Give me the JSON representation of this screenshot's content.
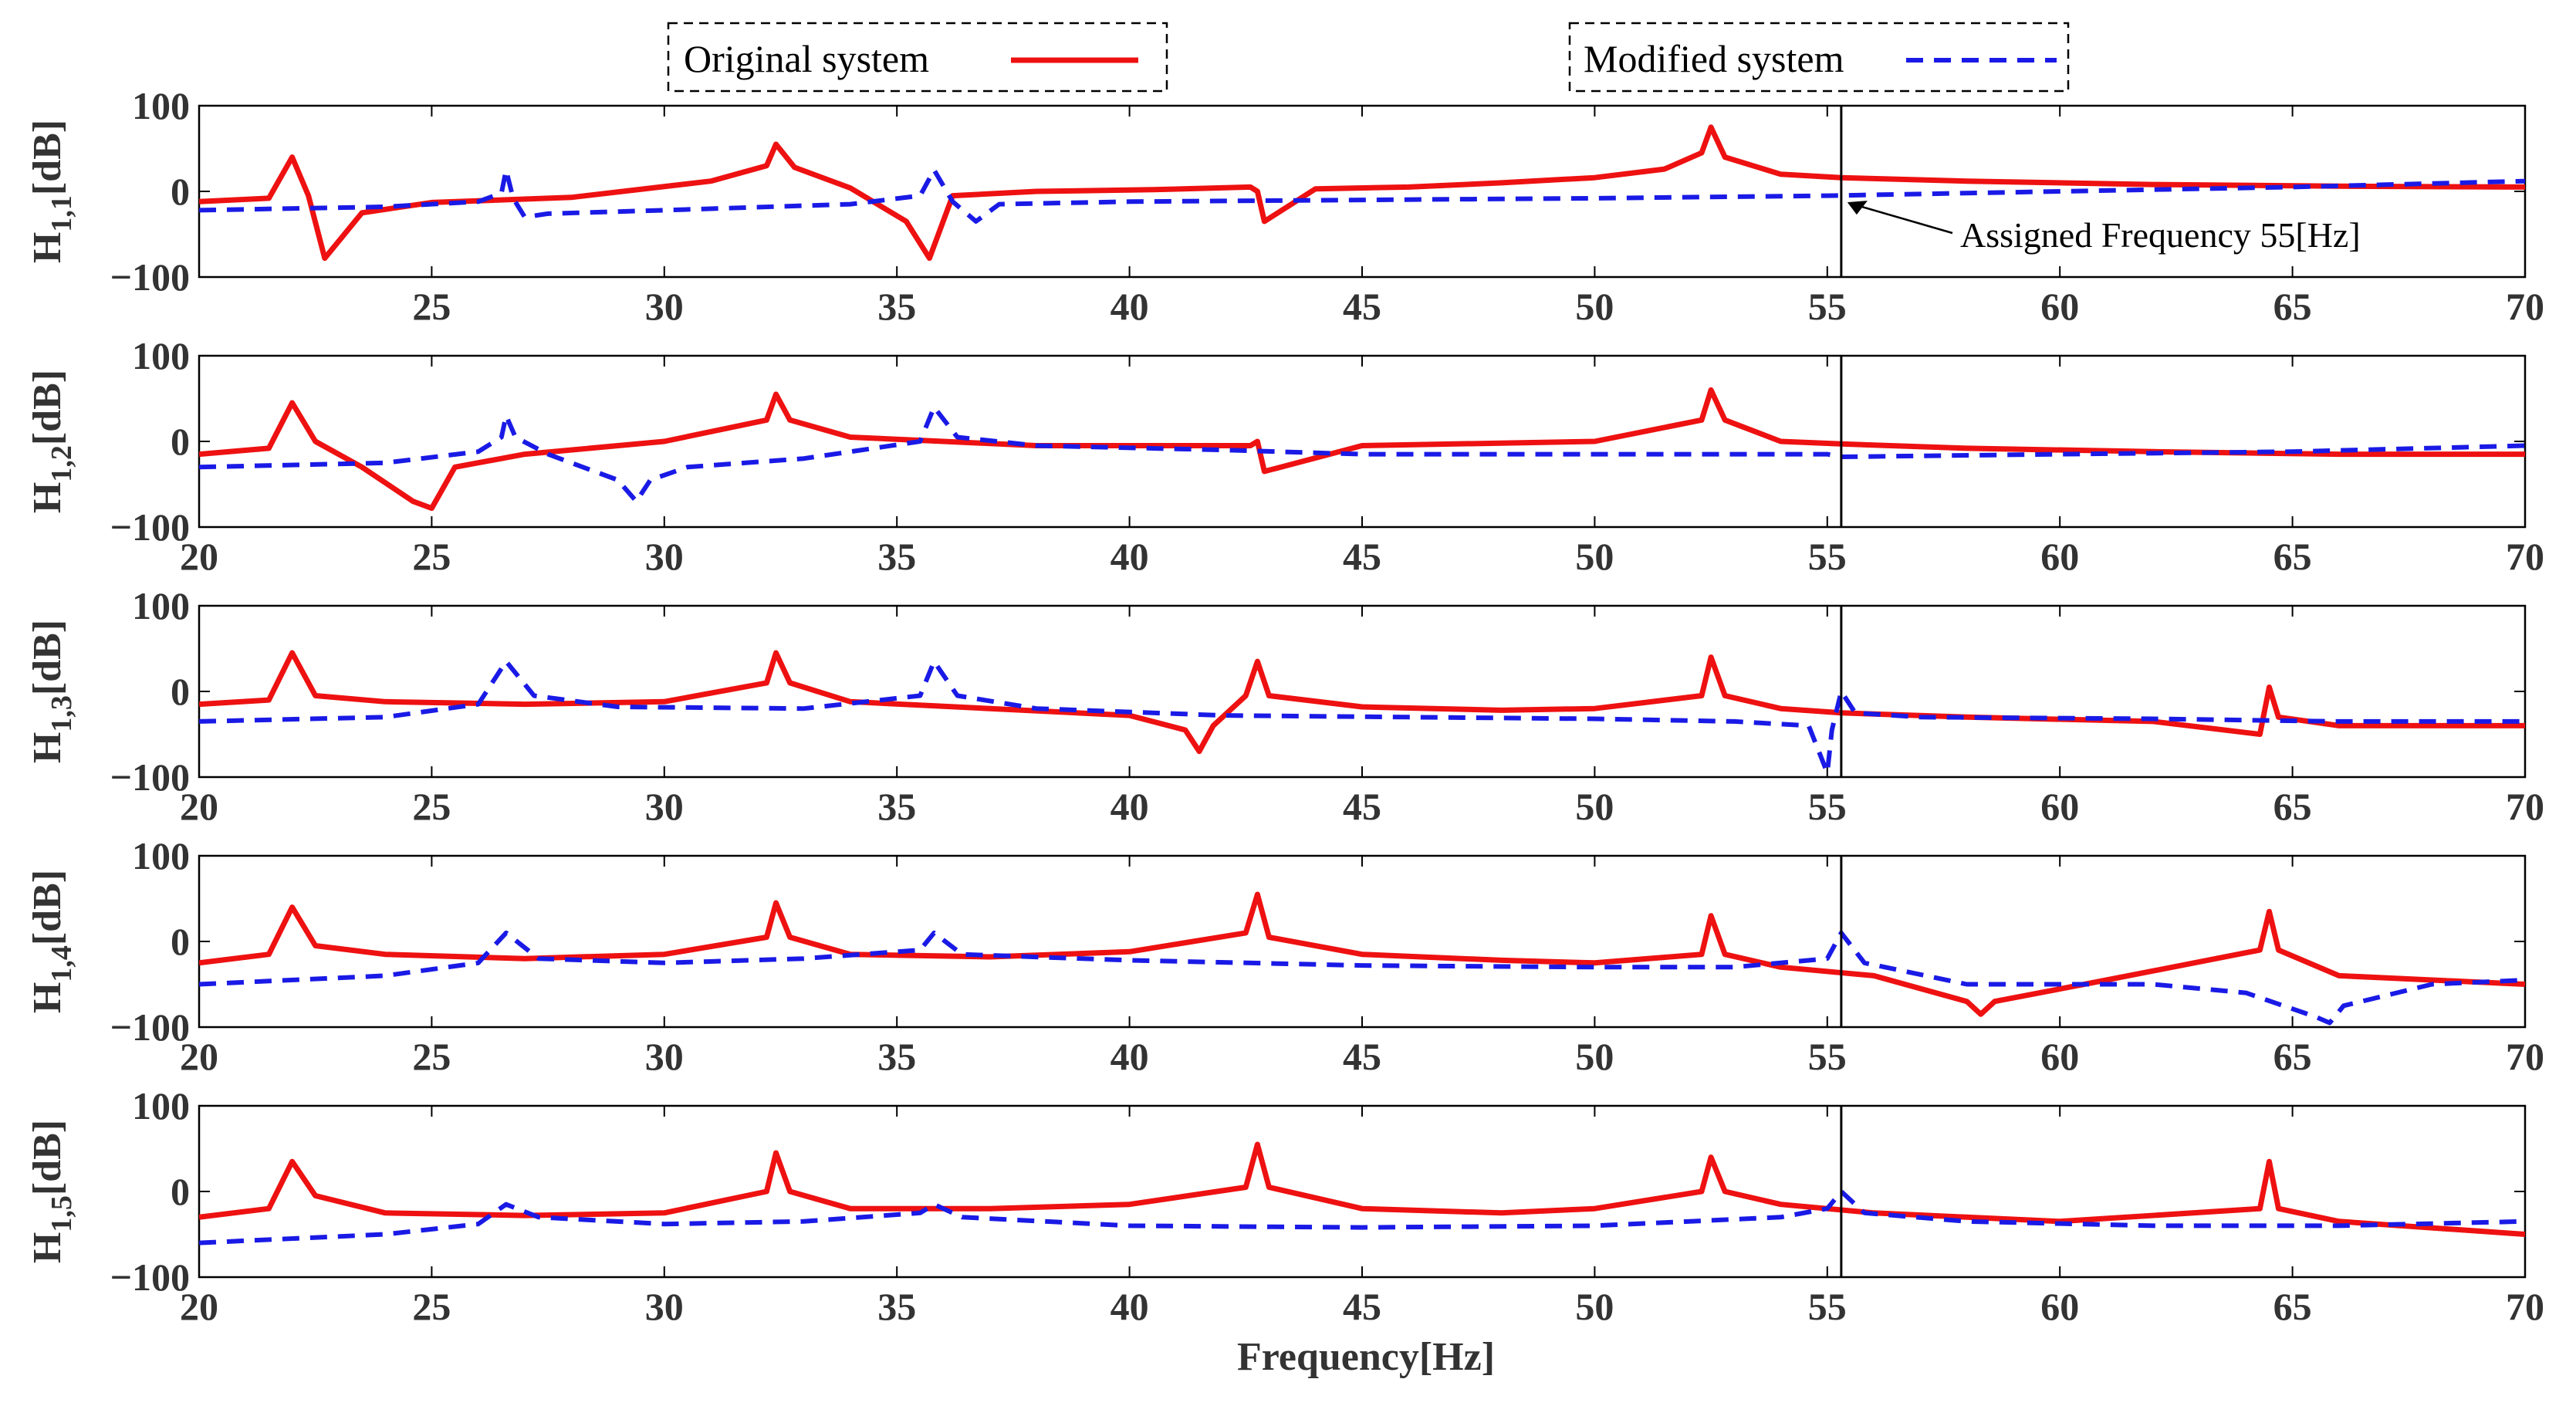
{
  "chart_data": {
    "type": "line",
    "xlabel": "Frequency[Hz]",
    "xlim": [
      20,
      70
    ],
    "ylim": [
      -100,
      100
    ],
    "xticks": [
      "20",
      "25",
      "30",
      "35",
      "40",
      "45",
      "50",
      "55",
      "60",
      "65",
      "70"
    ],
    "yticks": [
      "100",
      "0",
      "−100"
    ],
    "first_panel_xticks": [
      "25",
      "30",
      "35",
      "40",
      "45",
      "50",
      "55",
      "60",
      "65",
      "70"
    ],
    "assigned_frequency": 55.3,
    "annotation": "Assigned Frequency 55[Hz]",
    "legend": [
      {
        "name": "Original system",
        "color": "#ee1111",
        "style": "solid"
      },
      {
        "name": "Modified system",
        "color": "#1a1ae6",
        "style": "dashed"
      }
    ],
    "panels": [
      {
        "label_main": "H",
        "label_sub": "1,1",
        "label_unit": "[dB]",
        "series": [
          {
            "name": "Original system",
            "color": "#ee1111",
            "style": "solid",
            "x": [
              20,
              21.5,
              22,
              22.35,
              22.7,
              23.5,
              25,
              28,
              31,
              32.2,
              32.4,
              32.8,
              34,
              35.2,
              35.7,
              36.2,
              38,
              40.5,
              42.6,
              42.75,
              42.9,
              44,
              46,
              48,
              50,
              51.5,
              52.3,
              52.5,
              52.8,
              54,
              55.3,
              58,
              62,
              66,
              70
            ],
            "y": [
              -12,
              -8,
              40,
              -5,
              -78,
              -25,
              -13,
              -7,
              12,
              30,
              55,
              28,
              4,
              -35,
              -78,
              -5,
              0,
              2,
              5,
              0,
              -35,
              3,
              5,
              10,
              16,
              26,
              45,
              75,
              40,
              20,
              16,
              12,
              8,
              6,
              5
            ]
          },
          {
            "name": "Modified system",
            "color": "#1a1ae6",
            "style": "dashed",
            "x": [
              20,
              24,
              26,
              26.5,
              26.6,
              26.75,
              27,
              27.5,
              30,
              34,
              35.5,
              35.8,
              36.2,
              36.7,
              37.2,
              40,
              45,
              50,
              55,
              60,
              65,
              70
            ],
            "y": [
              -22,
              -18,
              -12,
              -2,
              25,
              -8,
              -30,
              -26,
              -22,
              -15,
              -5,
              25,
              -12,
              -35,
              -15,
              -12,
              -10,
              -8,
              -5,
              0,
              5,
              12
            ]
          }
        ]
      },
      {
        "label_main": "H",
        "label_sub": "1,2",
        "label_unit": "[dB]",
        "series": [
          {
            "name": "Original system",
            "color": "#ee1111",
            "style": "solid",
            "x": [
              20,
              21.5,
              22,
              22.5,
              23.5,
              24.6,
              25,
              25.5,
              27,
              30,
              32.2,
              32.4,
              32.7,
              34,
              36,
              38,
              42.6,
              42.75,
              42.9,
              45,
              50,
              52.3,
              52.5,
              52.8,
              54,
              55.3,
              58,
              62,
              66,
              70
            ],
            "y": [
              -15,
              -8,
              45,
              0,
              -30,
              -70,
              -78,
              -30,
              -15,
              0,
              25,
              55,
              25,
              5,
              0,
              -5,
              -5,
              0,
              -35,
              -5,
              0,
              25,
              60,
              25,
              0,
              -3,
              -8,
              -12,
              -15,
              -15
            ]
          },
          {
            "name": "Modified system",
            "color": "#1a1ae6",
            "style": "dashed",
            "x": [
              20,
              24,
              26,
              26.5,
              26.6,
              26.8,
              27.5,
              29,
              29.4,
              29.7,
              30.5,
              33,
              35.5,
              35.8,
              36.3,
              38,
              42,
              45,
              50,
              55,
              55.3,
              60,
              65,
              70
            ],
            "y": [
              -30,
              -25,
              -12,
              5,
              30,
              5,
              -15,
              -45,
              -70,
              -45,
              -30,
              -20,
              0,
              40,
              5,
              -5,
              -10,
              -15,
              -15,
              -15,
              -18,
              -15,
              -12,
              -5
            ]
          }
        ]
      },
      {
        "label_main": "H",
        "label_sub": "1,3",
        "label_unit": "[dB]",
        "series": [
          {
            "name": "Original system",
            "color": "#ee1111",
            "style": "solid",
            "x": [
              20,
              21.5,
              22,
              22.5,
              24,
              27,
              30,
              32.2,
              32.4,
              32.7,
              34,
              37,
              40,
              41.2,
              41.5,
              41.8,
              42.5,
              42.75,
              43,
              45,
              48,
              50,
              52.3,
              52.5,
              52.8,
              54,
              55.3,
              58,
              62,
              64.3,
              64.5,
              64.7,
              66,
              70
            ],
            "y": [
              -15,
              -10,
              45,
              -5,
              -12,
              -15,
              -12,
              10,
              45,
              10,
              -12,
              -20,
              -28,
              -45,
              -70,
              -40,
              -5,
              35,
              -5,
              -18,
              -22,
              -20,
              -5,
              40,
              -5,
              -20,
              -25,
              -30,
              -35,
              -50,
              5,
              -30,
              -40,
              -40
            ]
          },
          {
            "name": "Modified system",
            "color": "#1a1ae6",
            "style": "dashed",
            "x": [
              20,
              24,
              26,
              26.6,
              27.2,
              29,
              33,
              35.5,
              35.8,
              36.3,
              38,
              42,
              46,
              50,
              53,
              54.6,
              55,
              55.1,
              55.3,
              55.6,
              57,
              62,
              66,
              70
            ],
            "y": [
              -35,
              -30,
              -15,
              35,
              -5,
              -18,
              -20,
              -5,
              35,
              -5,
              -20,
              -28,
              -30,
              -32,
              -35,
              -40,
              -95,
              -45,
              0,
              -25,
              -30,
              -32,
              -35,
              -35
            ]
          }
        ]
      },
      {
        "label_main": "H",
        "label_sub": "1,4",
        "label_unit": "[dB]",
        "series": [
          {
            "name": "Original system",
            "color": "#ee1111",
            "style": "solid",
            "x": [
              20,
              21.5,
              22,
              22.5,
              24,
              27,
              30,
              32.2,
              32.4,
              32.7,
              34,
              37,
              40,
              42.5,
              42.75,
              43,
              45,
              48,
              50,
              52.3,
              52.5,
              52.8,
              54,
              56,
              58,
              58.3,
              58.6,
              61,
              64.3,
              64.5,
              64.7,
              66,
              70
            ],
            "y": [
              -25,
              -15,
              40,
              -5,
              -15,
              -20,
              -15,
              5,
              45,
              5,
              -15,
              -18,
              -12,
              10,
              55,
              5,
              -15,
              -22,
              -25,
              -15,
              30,
              -15,
              -30,
              -40,
              -70,
              -85,
              -70,
              -45,
              -10,
              35,
              -10,
              -40,
              -50
            ]
          },
          {
            "name": "Modified system",
            "color": "#1a1ae6",
            "style": "dashed",
            "x": [
              20,
              24,
              26,
              26.6,
              27.3,
              30,
              33,
              35.5,
              35.8,
              36.4,
              40,
              45,
              50,
              53,
              55,
              55.3,
              55.8,
              58,
              62,
              64,
              65.5,
              65.8,
              66.1,
              68,
              70
            ],
            "y": [
              -50,
              -40,
              -25,
              10,
              -20,
              -25,
              -20,
              -10,
              10,
              -15,
              -22,
              -28,
              -30,
              -30,
              -20,
              10,
              -25,
              -50,
              -50,
              -60,
              -88,
              -95,
              -75,
              -50,
              -45
            ]
          }
        ]
      },
      {
        "label_main": "H",
        "label_sub": "1,5",
        "label_unit": "[dB]",
        "series": [
          {
            "name": "Original system",
            "color": "#ee1111",
            "style": "solid",
            "x": [
              20,
              21.5,
              22,
              22.5,
              24,
              27,
              30,
              32.2,
              32.4,
              32.7,
              34,
              37,
              40,
              42.5,
              42.75,
              43,
              45,
              48,
              50,
              52.3,
              52.5,
              52.8,
              54,
              56,
              60,
              64.3,
              64.5,
              64.7,
              66,
              70
            ],
            "y": [
              -30,
              -20,
              35,
              -5,
              -25,
              -28,
              -25,
              0,
              45,
              0,
              -20,
              -20,
              -15,
              5,
              55,
              5,
              -20,
              -25,
              -20,
              0,
              40,
              0,
              -15,
              -25,
              -35,
              -20,
              35,
              -20,
              -35,
              -50
            ]
          },
          {
            "name": "Modified system",
            "color": "#1a1ae6",
            "style": "dashed",
            "x": [
              20,
              24,
              26,
              26.6,
              27.3,
              30,
              33,
              35.5,
              35.8,
              36.4,
              40,
              45,
              50,
              54,
              55,
              55.3,
              55.8,
              58,
              62,
              66,
              70
            ],
            "y": [
              -60,
              -50,
              -38,
              -15,
              -30,
              -38,
              -35,
              -25,
              -15,
              -30,
              -40,
              -42,
              -40,
              -30,
              -20,
              0,
              -25,
              -35,
              -40,
              -40,
              -35
            ]
          }
        ]
      }
    ]
  }
}
